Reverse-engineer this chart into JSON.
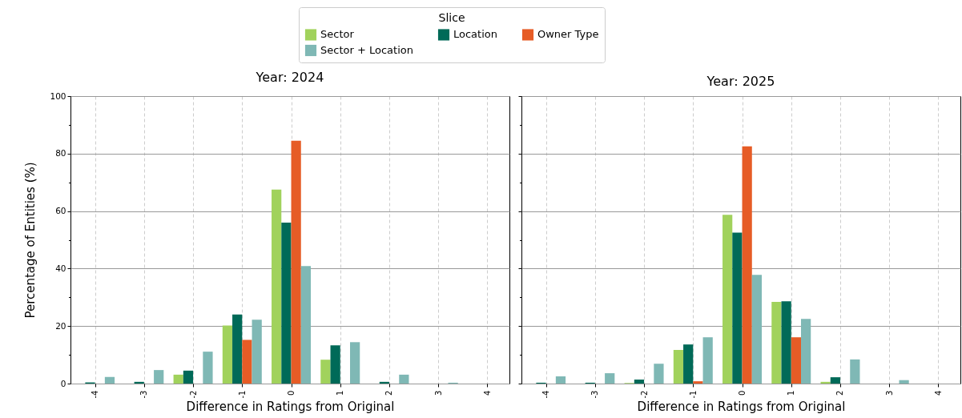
{
  "chart_data": [
    {
      "type": "bar",
      "title": "Year: 2024",
      "xlabel": "Difference in Ratings from Original",
      "ylabel": "Percentage of Entities (%)",
      "legend_title": "Slice",
      "legend": "top",
      "x": [
        -4,
        -3,
        -2,
        -1,
        0,
        1,
        2,
        3,
        4
      ],
      "series": [
        {
          "name": "Sector",
          "color": "#a1d25c",
          "values": [
            0,
            0,
            3.1,
            20.2,
            67.5,
            8.3,
            0,
            0,
            0
          ]
        },
        {
          "name": "Location",
          "color": "#006a58",
          "values": [
            0.4,
            0.6,
            4.5,
            24,
            56,
            13.3,
            0.6,
            0,
            0
          ]
        },
        {
          "name": "Owner Type",
          "color": "#e65c26",
          "values": [
            0,
            0,
            0,
            15.2,
            84.5,
            0,
            0,
            0,
            0
          ]
        },
        {
          "name": "Sector + Location",
          "color": "#7fb8b5",
          "values": [
            2.3,
            4.7,
            11.1,
            22.2,
            40.9,
            14.4,
            3.1,
            0.3,
            0
          ]
        }
      ],
      "xlim": [
        -4.5,
        4.45
      ],
      "xticks": [
        -4,
        -3,
        -2,
        -1,
        0,
        1,
        2,
        3,
        4
      ],
      "ylim": [
        0,
        100
      ],
      "yticks": [
        0,
        {
          "value": 10,
          "label": null
        },
        20,
        {
          "value": 30,
          "label": null
        },
        40,
        {
          "value": 50,
          "label": null
        },
        60,
        {
          "value": 70,
          "label": null
        },
        80,
        {
          "value": 90,
          "label": null
        },
        100
      ],
      "grid": true
    },
    {
      "type": "bar",
      "title": "Year: 2025",
      "xlabel": "Difference in Ratings from Original",
      "x": [
        -4,
        -3,
        -2,
        -1,
        0,
        1,
        2,
        3,
        4
      ],
      "series": [
        {
          "name": "Sector",
          "color": "#a1d25c",
          "values": [
            0,
            0,
            0.2,
            11.7,
            58.7,
            28.4,
            0.6,
            0,
            0
          ]
        },
        {
          "name": "Location",
          "color": "#006a58",
          "values": [
            0.3,
            0.3,
            1.4,
            13.6,
            52.5,
            28.6,
            2.2,
            0,
            0
          ]
        },
        {
          "name": "Owner Type",
          "color": "#e65c26",
          "values": [
            0,
            0,
            0,
            0.8,
            82.5,
            16.1,
            0,
            0,
            0
          ]
        },
        {
          "name": "Sector + Location",
          "color": "#7fb8b5",
          "values": [
            2.5,
            3.6,
            6.9,
            16.1,
            37.8,
            22.5,
            8.4,
            1.2,
            0
          ]
        }
      ],
      "xlim": [
        -4.5,
        4.45
      ],
      "xticks": [
        -4,
        -3,
        -2,
        -1,
        0,
        1,
        2,
        3,
        4
      ],
      "ylim": [
        0,
        100
      ],
      "yticks": [
        0,
        {
          "value": 10,
          "label": null
        },
        20,
        {
          "value": 30,
          "label": null
        },
        40,
        {
          "value": 50,
          "label": null
        },
        60,
        {
          "value": 70,
          "label": null
        },
        80,
        {
          "value": 90,
          "label": null
        },
        100
      ],
      "grid": true,
      "tick_labels": "x"
    }
  ]
}
